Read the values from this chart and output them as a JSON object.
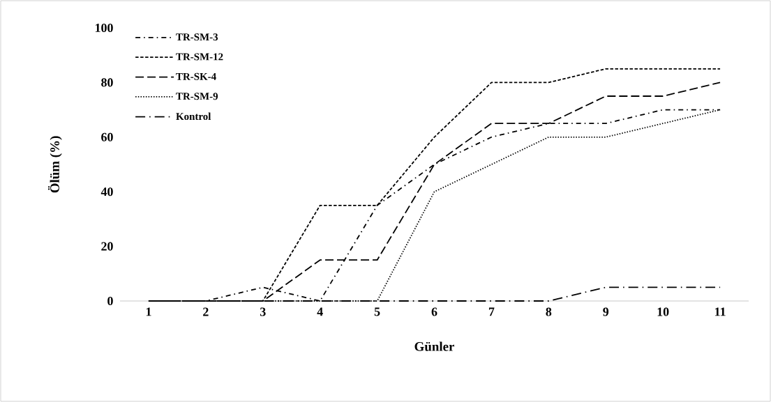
{
  "chart_data": {
    "type": "line",
    "xlabel": "Günler",
    "ylabel": "Ölüm (%)",
    "categories": [
      "1",
      "2",
      "3",
      "4",
      "5",
      "6",
      "7",
      "8",
      "9",
      "10",
      "11"
    ],
    "ylim": [
      0,
      100
    ],
    "yticks": [
      0,
      20,
      40,
      60,
      80,
      100
    ],
    "grid": false,
    "legend": "top left",
    "series": [
      {
        "name": "TR-SM-3",
        "color": "#000000",
        "line_style": "dashdot",
        "values": [
          0,
          0,
          5,
          0,
          35,
          50,
          60,
          65,
          65,
          70,
          70
        ]
      },
      {
        "name": "TR-SM-12",
        "color": "#000000",
        "line_style": "dashed",
        "values": [
          0,
          0,
          0,
          35,
          35,
          60,
          80,
          80,
          85,
          85,
          85
        ]
      },
      {
        "name": "TR-SK-4",
        "color": "#000000",
        "line_style": "longdash",
        "values": [
          0,
          0,
          0,
          15,
          15,
          50,
          65,
          65,
          75,
          75,
          80
        ]
      },
      {
        "name": "TR-SM-9",
        "color": "#000000",
        "line_style": "dotted",
        "values": [
          0,
          0,
          0,
          0,
          0,
          40,
          50,
          60,
          60,
          65,
          70
        ]
      },
      {
        "name": "Kontrol",
        "color": "#000000",
        "line_style": "longdashdot",
        "values": [
          0,
          0,
          0,
          0,
          0,
          0,
          0,
          0,
          5,
          5,
          5
        ]
      }
    ]
  }
}
